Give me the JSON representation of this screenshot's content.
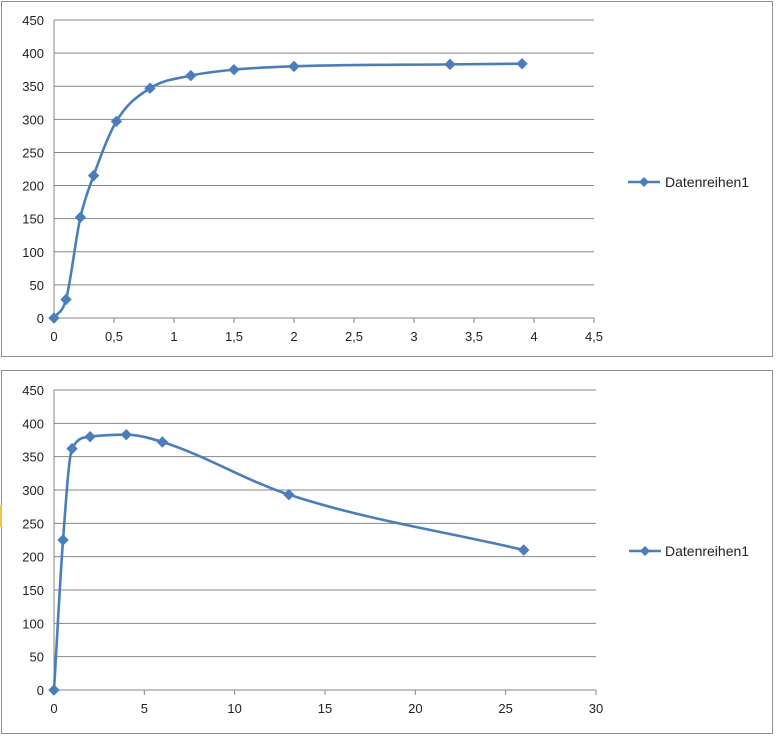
{
  "colors": {
    "series": "#4a7ebb",
    "grid": "#868686",
    "axis": "#868686"
  },
  "chart_data": [
    {
      "type": "line",
      "smooth": true,
      "marker": "diamond",
      "xlim": [
        0,
        4.5
      ],
      "ylim": [
        0,
        450
      ],
      "x_ticks": [
        "0",
        "0,5",
        "1",
        "1,5",
        "2",
        "2,5",
        "3",
        "3,5",
        "4",
        "4,5"
      ],
      "y_ticks": [
        "0",
        "50",
        "100",
        "150",
        "200",
        "250",
        "300",
        "350",
        "400",
        "450"
      ],
      "grid": "horizontal",
      "legend_position": "right",
      "series": [
        {
          "name": "Datenreihen1",
          "x": [
            0,
            0.1,
            0.22,
            0.33,
            0.52,
            0.8,
            1.14,
            1.5,
            2.0,
            3.3,
            3.9
          ],
          "y": [
            0,
            28,
            152,
            215,
            297,
            347,
            366,
            375,
            380,
            383,
            384
          ]
        }
      ]
    },
    {
      "type": "line",
      "smooth": true,
      "marker": "diamond",
      "xlim": [
        0,
        30
      ],
      "ylim": [
        0,
        450
      ],
      "x_ticks": [
        "0",
        "5",
        "10",
        "15",
        "20",
        "25",
        "30"
      ],
      "y_ticks": [
        "0",
        "50",
        "100",
        "150",
        "200",
        "250",
        "300",
        "350",
        "400",
        "450"
      ],
      "grid": "horizontal",
      "legend_position": "right",
      "series": [
        {
          "name": "Datenreihen1",
          "x": [
            0,
            0.5,
            1,
            2,
            4,
            6,
            13,
            26
          ],
          "y": [
            0,
            225,
            362,
            380,
            383,
            372,
            293,
            210
          ]
        }
      ]
    }
  ]
}
